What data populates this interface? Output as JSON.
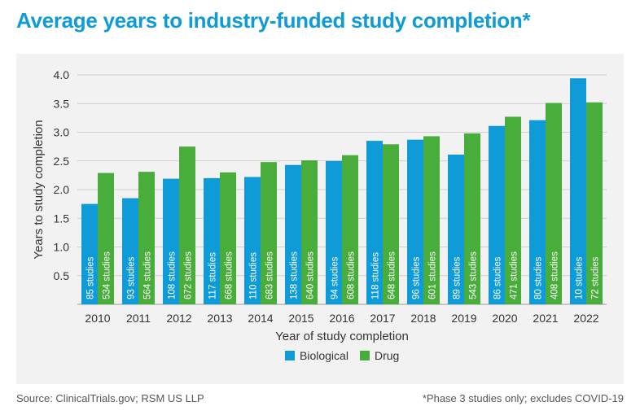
{
  "title": "Average years to industry-funded study completion*",
  "source": "Source: ClinicalTrials.gov; RSM US LLP",
  "footnote": "*Phase 3 studies only; excludes COVID-19",
  "colors": {
    "Biological": "#0f9bd7",
    "Drug": "#49ad3b"
  },
  "chart_data": {
    "type": "bar",
    "xlabel": "Year of study completion",
    "ylabel": "Years to study completion",
    "ylim": [
      0,
      4.0
    ],
    "yticks": [
      "0.5",
      "1.0",
      "1.5",
      "2.0",
      "2.5",
      "3.0",
      "3.5",
      "4.0"
    ],
    "grid": true,
    "legend_position": "bottom",
    "categories": [
      "2010",
      "2011",
      "2012",
      "2013",
      "2014",
      "2015",
      "2016",
      "2017",
      "2018",
      "2019",
      "2020",
      "2021",
      "2022"
    ],
    "series": [
      {
        "name": "Biological",
        "values": [
          1.75,
          1.85,
          2.19,
          2.2,
          2.22,
          2.43,
          2.5,
          2.85,
          2.87,
          2.61,
          3.11,
          3.21,
          3.94
        ],
        "labels": [
          "85 studies",
          "93 studies",
          "108 studies",
          "117 studies",
          "110 studies",
          "138 studies",
          "94 studies",
          "118 studies",
          "96 studies",
          "89 studies",
          "86 studies",
          "80 studies",
          "10 studies"
        ]
      },
      {
        "name": "Drug",
        "values": [
          2.29,
          2.31,
          2.75,
          2.3,
          2.48,
          2.51,
          2.6,
          2.79,
          2.93,
          2.98,
          3.27,
          3.51,
          3.52
        ],
        "labels": [
          "534 studies",
          "564 studies",
          "672 studies",
          "668 studies",
          "683 studies",
          "640 studies",
          "608 studies",
          "648 studies",
          "601 studies",
          "543 studies",
          "471 studies",
          "408 studies",
          "72 studies"
        ]
      }
    ]
  }
}
